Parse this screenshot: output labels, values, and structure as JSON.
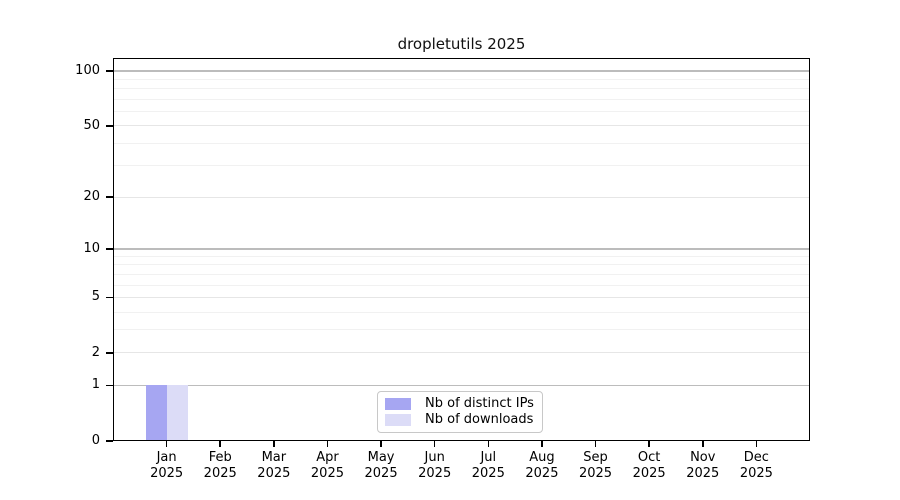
{
  "title": "dropletutils 2025",
  "chart_data": {
    "type": "bar",
    "title": "dropletutils 2025",
    "categories": [
      {
        "month": "Jan",
        "year": "2025"
      },
      {
        "month": "Feb",
        "year": "2025"
      },
      {
        "month": "Mar",
        "year": "2025"
      },
      {
        "month": "Apr",
        "year": "2025"
      },
      {
        "month": "May",
        "year": "2025"
      },
      {
        "month": "Jun",
        "year": "2025"
      },
      {
        "month": "Jul",
        "year": "2025"
      },
      {
        "month": "Aug",
        "year": "2025"
      },
      {
        "month": "Sep",
        "year": "2025"
      },
      {
        "month": "Oct",
        "year": "2025"
      },
      {
        "month": "Nov",
        "year": "2025"
      },
      {
        "month": "Dec",
        "year": "2025"
      }
    ],
    "series": [
      {
        "name": "Nb of distinct IPs",
        "color": "#a6a6f2",
        "values": [
          1,
          0,
          0,
          0,
          0,
          0,
          0,
          0,
          0,
          0,
          0,
          0
        ]
      },
      {
        "name": "Nb of downloads",
        "color": "#dcdcf7",
        "values": [
          1,
          0,
          0,
          0,
          0,
          0,
          0,
          0,
          0,
          0,
          0,
          0
        ]
      }
    ],
    "xlabel": "",
    "ylabel": "",
    "yscale": "log1p",
    "ylim": [
      0,
      118
    ],
    "ytick_values": [
      100,
      50,
      20,
      10,
      5,
      2,
      1,
      0
    ],
    "ytick_labels": [
      "100",
      "50",
      "20",
      "10",
      "5",
      "2",
      "1",
      "0"
    ],
    "gridlines": {
      "decade_values": [
        1,
        10,
        100
      ],
      "major_values": [
        2,
        5,
        20,
        50
      ],
      "minor_values": [
        3,
        4,
        6,
        7,
        8,
        9,
        30,
        40,
        60,
        70,
        80,
        90
      ],
      "decade_color": "#bcbcbc",
      "major_color": "#e6e6e6",
      "minor_color": "#f1f1f1"
    },
    "legend_position": "inside-bottom-center"
  }
}
